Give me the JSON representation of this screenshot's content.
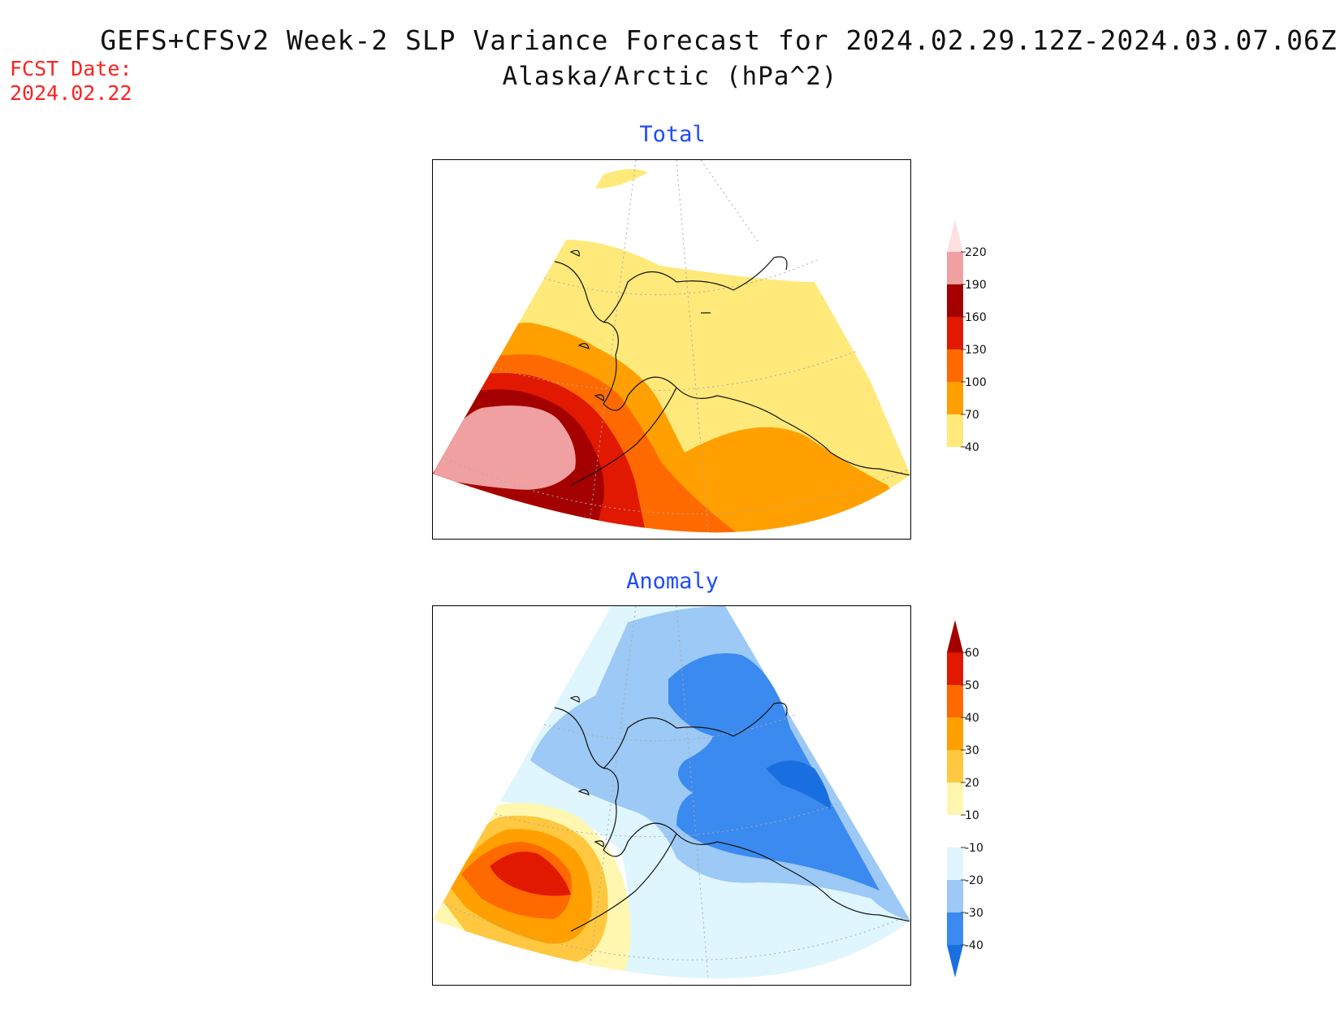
{
  "title": {
    "line1": "GEFS+CFSv2 Week-2 SLP Variance Forecast for 2024.02.29.12Z-2024.03.07.06Z",
    "line2": "Alaska/Arctic (hPa^2)"
  },
  "forecast": {
    "label": "FCST Date:",
    "value": "2024.02.22"
  },
  "panels": [
    {
      "title": "Total",
      "colorbar": {
        "levels": [
          "40",
          "70",
          "100",
          "130",
          "160",
          "190",
          "220"
        ],
        "colors": [
          "#ffe97a",
          "#ffa000",
          "#ff6a00",
          "#e11900",
          "#a50000",
          "#f0a0a0",
          "#ffe0e0"
        ]
      }
    },
    {
      "title": "Anomaly",
      "colorbar": {
        "levels": [
          "-40",
          "-30",
          "-20",
          "-10",
          "10",
          "20",
          "30",
          "40",
          "50",
          "60"
        ],
        "colors": [
          "#1a6fe0",
          "#3a8af0",
          "#9cc9f5",
          "#dff6ff",
          "#ffffff",
          "#fff7b0",
          "#ffc840",
          "#ffa000",
          "#ff6a00",
          "#e11900",
          "#a50000"
        ]
      }
    }
  ]
}
